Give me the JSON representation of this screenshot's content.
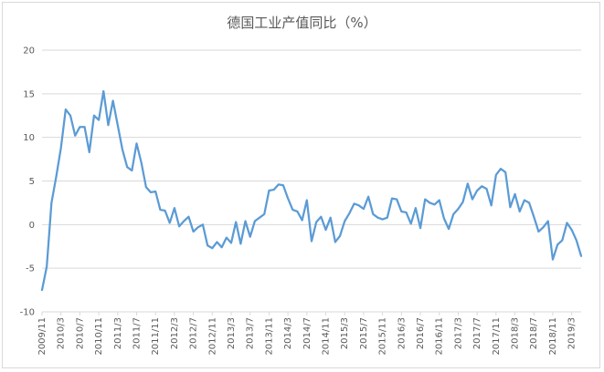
{
  "chart_data": {
    "type": "line",
    "title": "德国工业产值同比（%）",
    "xlabel": "",
    "ylabel": "",
    "ylim": [
      -10,
      20
    ],
    "yticks": [
      -10,
      -5,
      0,
      5,
      10,
      15,
      20
    ],
    "grid": true,
    "legend": "none",
    "line_color": "#5b9bd5",
    "grid_color": "#d9d9d9",
    "x_tick_labels": [
      "2009/11",
      "2010/3",
      "2010/7",
      "2010/11",
      "2011/3",
      "2011/7",
      "2011/11",
      "2012/3",
      "2012/7",
      "2012/11",
      "2013/3",
      "2013/7",
      "2013/11",
      "2014/3",
      "2014/7",
      "2014/11",
      "2015/3",
      "2015/7",
      "2015/11",
      "2016/3",
      "2016/7",
      "2016/11",
      "2017/3",
      "2017/7",
      "2017/11",
      "2018/3",
      "2018/7",
      "2018/11",
      "2019/3"
    ],
    "series": [
      {
        "name": "",
        "start": "2009/11",
        "values": [
          -7.5,
          -4.8,
          2.5,
          5.5,
          8.8,
          13.2,
          12.5,
          10.2,
          11.2,
          11.2,
          8.3,
          12.5,
          12,
          15.3,
          11.4,
          14.2,
          11.4,
          8.6,
          6.6,
          6.2,
          9.3,
          7.1,
          4.3,
          3.7,
          3.8,
          1.7,
          1.6,
          0.2,
          1.9,
          -0.2,
          0.4,
          0.9,
          -0.8,
          -0.3,
          0,
          -2.4,
          -2.7,
          -2,
          -2.6,
          -1.5,
          -2.1,
          0.3,
          -2.2,
          0.4,
          -1.4,
          0.4,
          0.8,
          1.2,
          3.9,
          4,
          4.6,
          4.5,
          3,
          1.7,
          1.5,
          0.5,
          2.8,
          -1.9,
          0.3,
          0.9,
          -0.6,
          0.8,
          -2,
          -1.3,
          0.4,
          1.3,
          2.4,
          2.2,
          1.8,
          3.2,
          1.2,
          0.8,
          0.6,
          0.8,
          3,
          2.9,
          1.5,
          1.4,
          0.1,
          1.9,
          -0.4,
          2.9,
          2.5,
          2.3,
          2.8,
          0.7,
          -0.5,
          1.2,
          1.8,
          2.6,
          4.7,
          2.9,
          3.9,
          4.4,
          4.1,
          2.2,
          5.7,
          6.4,
          6,
          2,
          3.5,
          1.5,
          2.8,
          2.5,
          0.9,
          -0.8,
          -0.3,
          0.4,
          -4,
          -2.3,
          -1.8,
          0.2,
          -0.6,
          -1.8,
          -3.6
        ]
      }
    ]
  }
}
